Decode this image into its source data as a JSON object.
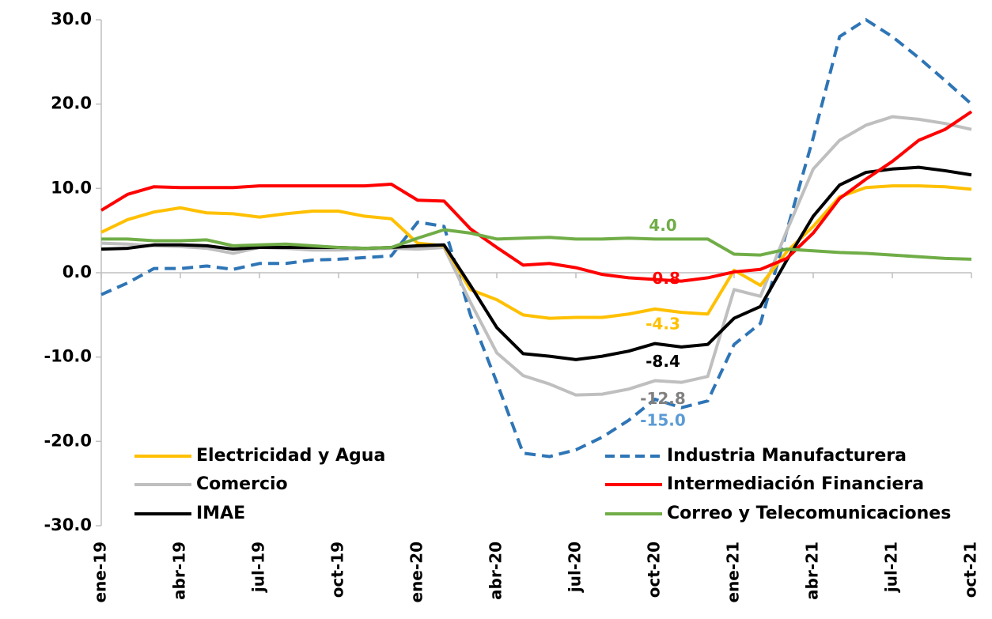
{
  "chart_data": {
    "type": "line",
    "categories": [
      "ene-19",
      null,
      null,
      "abr-19",
      null,
      null,
      "jul-19",
      null,
      null,
      "oct-19",
      null,
      null,
      "ene-20",
      null,
      null,
      "abr-20",
      null,
      null,
      "jul-20",
      null,
      null,
      "oct-20",
      null,
      null,
      "ene-21",
      null,
      null,
      "abr-21",
      null,
      null,
      "jul-21",
      null,
      null,
      "oct-21"
    ],
    "ylim": [
      -30,
      30
    ],
    "yticks": [
      {
        "value": -30,
        "label": "-30.0"
      },
      {
        "value": -20,
        "label": "-20.0"
      },
      {
        "value": -10,
        "label": "-10.0"
      },
      {
        "value": 0,
        "label": "0.0"
      },
      {
        "value": 10,
        "label": "10.0"
      },
      {
        "value": 20,
        "label": "20.0"
      },
      {
        "value": 30,
        "label": "30.0"
      }
    ],
    "series": [
      {
        "name": "Electricidad y Agua",
        "color": "#ffc000",
        "dash": false,
        "values": [
          4.8,
          6.3,
          7.2,
          7.7,
          7.1,
          7.0,
          6.6,
          7.0,
          7.3,
          7.3,
          6.7,
          6.4,
          3.5,
          3.2,
          -2.0,
          -3.2,
          -5.0,
          -5.4,
          -5.3,
          -5.3,
          -4.9,
          -4.3,
          -4.7,
          -4.9,
          0.3,
          -1.5,
          2.5,
          5.5,
          9.0,
          10.1,
          10.3,
          10.3,
          10.2,
          9.9
        ],
        "value_labels": [
          null,
          null,
          null,
          null,
          null,
          null,
          null,
          null,
          null,
          null,
          null,
          null,
          null,
          null,
          null,
          null,
          null,
          null,
          null,
          null,
          null,
          "-4.3",
          null,
          null,
          null,
          null,
          null,
          null,
          null,
          null,
          null,
          null,
          null,
          null
        ]
      },
      {
        "name": "Industria Manufacturera",
        "color": "#2e75b6",
        "dash": true,
        "values": [
          -2.6,
          -1.2,
          0.5,
          0.5,
          0.8,
          0.4,
          1.1,
          1.1,
          1.5,
          1.6,
          1.8,
          2.0,
          6.0,
          5.5,
          -5.0,
          -13.0,
          -21.4,
          -21.8,
          -21.0,
          -19.5,
          -17.5,
          -15.0,
          -16.0,
          -15.2,
          -8.5,
          -6.0,
          5.0,
          16.0,
          28.0,
          30.0,
          28.0,
          25.5,
          22.8,
          20.0
        ],
        "value_labels": [
          null,
          null,
          null,
          null,
          null,
          null,
          null,
          null,
          null,
          null,
          null,
          null,
          null,
          null,
          null,
          null,
          null,
          null,
          null,
          null,
          null,
          "-15.0",
          null,
          null,
          null,
          null,
          null,
          null,
          null,
          null,
          null,
          null,
          null,
          null
        ]
      },
      {
        "name": "Comercio",
        "color": "#bfbfbf",
        "dash": false,
        "values": [
          3.5,
          3.4,
          3.2,
          3.1,
          2.9,
          2.3,
          3.0,
          2.9,
          2.7,
          2.7,
          2.8,
          2.9,
          2.8,
          3.0,
          -3.5,
          -9.5,
          -12.2,
          -13.2,
          -14.5,
          -14.4,
          -13.8,
          -12.8,
          -13.0,
          -12.3,
          -2.0,
          -2.8,
          5.0,
          12.3,
          15.7,
          17.5,
          18.5,
          18.2,
          17.7,
          17.0
        ],
        "value_labels": [
          null,
          null,
          null,
          null,
          null,
          null,
          null,
          null,
          null,
          null,
          null,
          null,
          null,
          null,
          null,
          null,
          null,
          null,
          null,
          null,
          null,
          "-12.8",
          null,
          null,
          null,
          null,
          null,
          null,
          null,
          null,
          null,
          null,
          null,
          null
        ]
      },
      {
        "name": "Intermediación Financiera",
        "color": "#ff0000",
        "dash": false,
        "values": [
          7.4,
          9.3,
          10.2,
          10.1,
          10.1,
          10.1,
          10.3,
          10.3,
          10.3,
          10.3,
          10.3,
          10.5,
          8.6,
          8.5,
          5.2,
          3.0,
          0.9,
          1.1,
          0.6,
          -0.2,
          -0.6,
          -0.8,
          -1.0,
          -0.6,
          0.1,
          0.4,
          1.7,
          4.7,
          8.8,
          11.1,
          13.2,
          15.7,
          17.0,
          19.1
        ],
        "value_labels": [
          null,
          null,
          null,
          null,
          null,
          null,
          null,
          null,
          null,
          null,
          null,
          null,
          null,
          null,
          null,
          null,
          null,
          null,
          null,
          null,
          null,
          "-0.8",
          null,
          null,
          null,
          null,
          null,
          null,
          null,
          null,
          null,
          null,
          null,
          null
        ]
      },
      {
        "name": "IMAE",
        "color": "#000000",
        "dash": false,
        "values": [
          2.8,
          2.9,
          3.3,
          3.3,
          3.2,
          2.8,
          3.0,
          3.0,
          3.0,
          3.0,
          2.9,
          3.0,
          3.2,
          3.3,
          -1.5,
          -6.5,
          -9.6,
          -9.9,
          -10.3,
          -9.9,
          -9.3,
          -8.4,
          -8.8,
          -8.5,
          -5.4,
          -4.0,
          1.5,
          6.7,
          10.4,
          11.9,
          12.3,
          12.5,
          12.1,
          11.6
        ],
        "value_labels": [
          null,
          null,
          null,
          null,
          null,
          null,
          null,
          null,
          null,
          null,
          null,
          null,
          null,
          null,
          null,
          null,
          null,
          null,
          null,
          null,
          null,
          "-8.4",
          null,
          null,
          null,
          null,
          null,
          null,
          null,
          null,
          null,
          null,
          null,
          null
        ]
      },
      {
        "name": "Correo y Telecomunicaciones",
        "color": "#70ad47",
        "dash": false,
        "values": [
          4.0,
          4.0,
          3.8,
          3.8,
          3.9,
          3.2,
          3.3,
          3.4,
          3.2,
          3.0,
          2.9,
          3.0,
          4.1,
          5.1,
          4.7,
          4.0,
          4.1,
          4.2,
          4.0,
          4.0,
          4.1,
          4.0,
          4.0,
          4.0,
          2.2,
          2.1,
          2.8,
          2.6,
          2.4,
          2.3,
          2.1,
          1.9,
          1.7,
          1.6
        ],
        "value_labels": [
          null,
          null,
          null,
          null,
          null,
          null,
          null,
          null,
          null,
          null,
          null,
          null,
          null,
          null,
          null,
          null,
          null,
          null,
          null,
          null,
          null,
          "4.0",
          null,
          null,
          null,
          null,
          null,
          null,
          null,
          null,
          null,
          null,
          null,
          null
        ]
      }
    ]
  }
}
